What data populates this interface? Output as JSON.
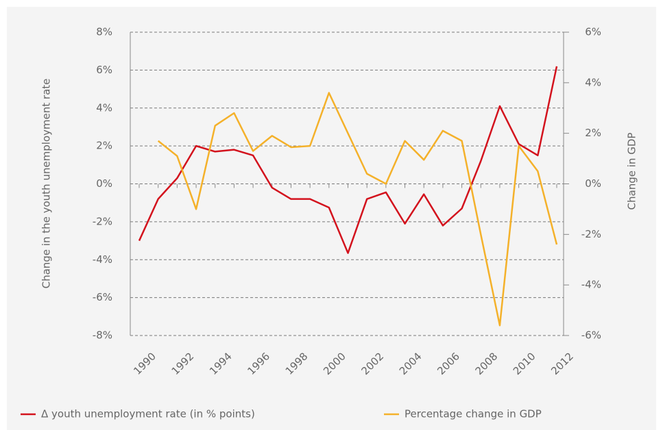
{
  "chart_data": {
    "type": "line",
    "ylabel": "Change in the youth unemployment rate",
    "y2label": "Change in GDP",
    "x": [
      1990,
      1991,
      1992,
      1993,
      1994,
      1995,
      1996,
      1997,
      1998,
      1999,
      2000,
      2001,
      2002,
      2003,
      2004,
      2005,
      2006,
      2007,
      2008,
      2009,
      2010,
      2011,
      2012
    ],
    "xlim": [
      1990,
      2012
    ],
    "xticks": [
      1990,
      1992,
      1994,
      1996,
      1998,
      2000,
      2002,
      2004,
      2006,
      2008,
      2010,
      2012
    ],
    "ylim": [
      -8,
      8
    ],
    "yticks": [
      {
        "value": -8,
        "label": "-8%"
      },
      {
        "value": -6,
        "label": "-6%"
      },
      {
        "value": -4,
        "label": "-4%"
      },
      {
        "value": -2,
        "label": "-2%"
      },
      {
        "value": 0,
        "label": "0%"
      },
      {
        "value": 2,
        "label": "2%"
      },
      {
        "value": 4,
        "label": "4%"
      },
      {
        "value": 6,
        "label": "6%"
      },
      {
        "value": 8,
        "label": "8%"
      }
    ],
    "y2lim": [
      -6,
      6
    ],
    "y2ticks": [
      {
        "value": -6,
        "label": "-6%"
      },
      {
        "value": -4,
        "label": "-4%"
      },
      {
        "value": -2,
        "label": "-2%"
      },
      {
        "value": 0,
        "label": "0%"
      },
      {
        "value": 2,
        "label": "2%"
      },
      {
        "value": 4,
        "label": "4%"
      },
      {
        "value": 6,
        "label": "6%"
      }
    ],
    "grid": true,
    "legend": "bottom",
    "series": [
      {
        "name": "Δ youth unemployment rate (in % points)",
        "color": "#d3121d",
        "values": [
          -3.0,
          -0.8,
          0.3,
          2.0,
          1.7,
          1.8,
          1.5,
          -0.2,
          -0.8,
          -0.8,
          -1.25,
          -3.65,
          -0.8,
          -0.45,
          -2.1,
          -0.55,
          -2.2,
          -1.3,
          1.2,
          4.1,
          2.1,
          1.5,
          6.2
        ]
      },
      {
        "name": "Percentage change in GDP",
        "color": "#f4b12a",
        "axis": "y2",
        "values": [
          null,
          1.7,
          1.1,
          -1.0,
          2.3,
          2.8,
          1.3,
          1.9,
          1.45,
          1.5,
          3.6,
          2.0,
          0.4,
          0.0,
          1.7,
          0.95,
          2.1,
          1.7,
          -2.0,
          -5.6,
          1.5,
          0.5,
          -2.4
        ]
      }
    ]
  }
}
